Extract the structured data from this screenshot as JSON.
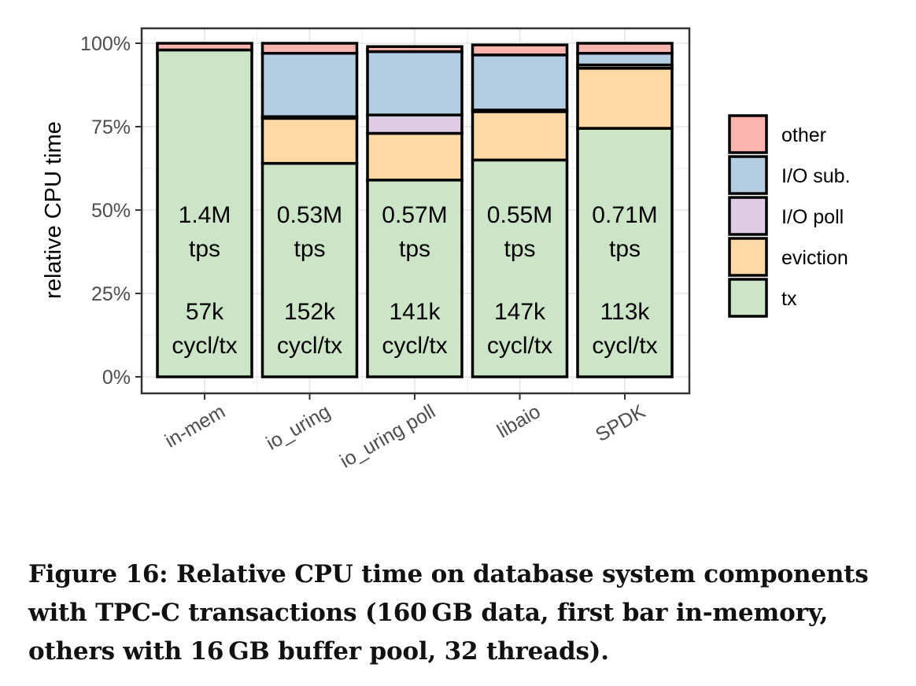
{
  "chart_data": {
    "type": "bar",
    "stacked": true,
    "ylabel": "relative CPU time",
    "xlabel": "",
    "ylim": [
      0,
      1
    ],
    "y_ticks": [
      "0%",
      "25%",
      "50%",
      "75%",
      "100%"
    ],
    "categories": [
      "in-mem",
      "io_uring",
      "io_uring poll",
      "libaio",
      "SPDK"
    ],
    "series": [
      {
        "name": "tx",
        "color": "#cce5c7",
        "values": [
          0.98,
          0.64,
          0.59,
          0.65,
          0.745
        ]
      },
      {
        "name": "eviction",
        "color": "#fed9a6",
        "values": [
          0.0,
          0.135,
          0.14,
          0.145,
          0.18
        ]
      },
      {
        "name": "I/O poll",
        "color": "#decbe4",
        "values": [
          0.0,
          0.005,
          0.055,
          0.005,
          0.01
        ]
      },
      {
        "name": "I/O sub.",
        "color": "#b3cde3",
        "values": [
          0.0,
          0.19,
          0.19,
          0.165,
          0.035
        ]
      },
      {
        "name": "other",
        "color": "#fbb4ae",
        "values": [
          0.02,
          0.03,
          0.015,
          0.03,
          0.03
        ]
      }
    ],
    "legend_order": [
      "other",
      "I/O sub.",
      "I/O poll",
      "eviction",
      "tx"
    ],
    "legend_position": "right",
    "grid": true,
    "bar_labels": [
      {
        "tps": "1.4M",
        "tps_unit": "tps",
        "cycles": "57k",
        "cycles_unit": "cycl/tx"
      },
      {
        "tps": "0.53M",
        "tps_unit": "tps",
        "cycles": "152k",
        "cycles_unit": "cycl/tx"
      },
      {
        "tps": "0.57M",
        "tps_unit": "tps",
        "cycles": "141k",
        "cycles_unit": "cycl/tx"
      },
      {
        "tps": "0.55M",
        "tps_unit": "tps",
        "cycles": "147k",
        "cycles_unit": "cycl/tx"
      },
      {
        "tps": "0.71M",
        "tps_unit": "tps",
        "cycles": "113k",
        "cycles_unit": "cycl/tx"
      }
    ]
  },
  "caption": "Figure 16: Relative CPU time on database system components with TPC-C transactions (160 GB data, first bar in-memory, others with 16 GB buffer pool, 32 threads)."
}
